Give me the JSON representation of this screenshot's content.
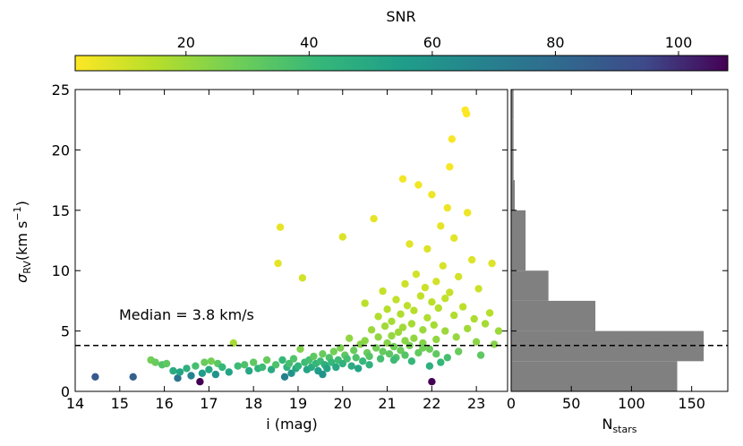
{
  "colorbar": {
    "label": "SNR",
    "min": 2,
    "max": 108,
    "ticks": [
      "20",
      "40",
      "60",
      "80",
      "100"
    ],
    "tick_values": [
      20,
      40,
      60,
      80,
      100
    ],
    "colormap": "viridis_r"
  },
  "annotation": "Median = 3.8 km/s",
  "chart_data": [
    {
      "type": "scatter",
      "xlabel": "i (mag)",
      "ylabel_main": "σ",
      "ylabel_sub": "RV",
      "ylabel_rest": "(km s",
      "ylabel_sup": "−1",
      "ylabel_close": ")",
      "xlim": [
        14,
        23.7
      ],
      "ylim": [
        0,
        25
      ],
      "xticks": [
        "14",
        "15",
        "16",
        "17",
        "18",
        "19",
        "20",
        "21",
        "22",
        "23"
      ],
      "xtick_values": [
        14,
        15,
        16,
        17,
        18,
        19,
        20,
        21,
        22,
        23
      ],
      "yticks": [
        "0",
        "5",
        "10",
        "15",
        "20",
        "25"
      ],
      "ytick_values": [
        0,
        5,
        10,
        15,
        20,
        25
      ],
      "median_line": 3.8,
      "points": [
        [
          14.45,
          1.2,
          88
        ],
        [
          15.3,
          1.2,
          85
        ],
        [
          15.7,
          2.6,
          28
        ],
        [
          15.8,
          2.4,
          30
        ],
        [
          15.95,
          2.2,
          35
        ],
        [
          16.05,
          2.3,
          32
        ],
        [
          16.2,
          1.7,
          48
        ],
        [
          16.3,
          1.1,
          75
        ],
        [
          16.35,
          1.6,
          52
        ],
        [
          16.5,
          1.9,
          45
        ],
        [
          16.6,
          1.3,
          68
        ],
        [
          16.7,
          2.1,
          38
        ],
        [
          16.8,
          0.8,
          108
        ],
        [
          16.85,
          1.5,
          55
        ],
        [
          16.9,
          2.4,
          30
        ],
        [
          17.0,
          1.8,
          50
        ],
        [
          17.05,
          2.5,
          28
        ],
        [
          17.15,
          1.4,
          60
        ],
        [
          17.2,
          2.3,
          33
        ],
        [
          17.3,
          2.0,
          42
        ],
        [
          17.45,
          1.6,
          52
        ],
        [
          17.55,
          4.0,
          18
        ],
        [
          17.65,
          2.1,
          40
        ],
        [
          17.8,
          2.2,
          36
        ],
        [
          17.9,
          1.7,
          50
        ],
        [
          18.0,
          2.4,
          32
        ],
        [
          18.1,
          1.9,
          45
        ],
        [
          18.2,
          2.0,
          40
        ],
        [
          18.3,
          2.6,
          30
        ],
        [
          18.4,
          1.8,
          48
        ],
        [
          18.5,
          2.2,
          36
        ],
        [
          18.55,
          10.6,
          7
        ],
        [
          18.6,
          13.6,
          6
        ],
        [
          18.65,
          2.6,
          42
        ],
        [
          18.7,
          1.2,
          70
        ],
        [
          18.75,
          2.0,
          45
        ],
        [
          18.8,
          2.3,
          38
        ],
        [
          18.85,
          1.5,
          60
        ],
        [
          18.9,
          2.7,
          35
        ],
        [
          18.95,
          1.9,
          50
        ],
        [
          19.0,
          2.1,
          44
        ],
        [
          19.05,
          3.5,
          25
        ],
        [
          19.1,
          9.4,
          10
        ],
        [
          19.15,
          2.4,
          40
        ],
        [
          19.2,
          1.8,
          52
        ],
        [
          19.25,
          2.6,
          38
        ],
        [
          19.3,
          2.0,
          48
        ],
        [
          19.35,
          2.9,
          32
        ],
        [
          19.4,
          2.3,
          42
        ],
        [
          19.45,
          1.7,
          55
        ],
        [
          19.5,
          2.5,
          40
        ],
        [
          19.55,
          3.1,
          30
        ],
        [
          19.6,
          2.2,
          46
        ],
        [
          19.65,
          1.9,
          52
        ],
        [
          19.7,
          2.8,
          36
        ],
        [
          19.75,
          2.4,
          42
        ],
        [
          19.8,
          3.3,
          28
        ],
        [
          19.85,
          2.0,
          50
        ],
        [
          19.9,
          2.6,
          40
        ],
        [
          19.95,
          3.6,
          26
        ],
        [
          20.0,
          2.3,
          45
        ],
        [
          20.0,
          12.8,
          8
        ],
        [
          20.05,
          3.0,
          32
        ],
        [
          20.1,
          2.7,
          38
        ],
        [
          20.15,
          4.4,
          22
        ],
        [
          20.2,
          2.1,
          48
        ],
        [
          20.25,
          3.4,
          30
        ],
        [
          20.3,
          2.8,
          36
        ],
        [
          20.35,
          1.9,
          52
        ],
        [
          20.4,
          3.9,
          24
        ],
        [
          20.45,
          2.5,
          42
        ],
        [
          20.5,
          4.2,
          23
        ],
        [
          20.5,
          7.3,
          14
        ],
        [
          20.55,
          3.2,
          30
        ],
        [
          20.6,
          2.9,
          34
        ],
        [
          20.65,
          5.1,
          20
        ],
        [
          20.7,
          14.3,
          6
        ],
        [
          20.75,
          3.6,
          28
        ],
        [
          20.8,
          4.5,
          22
        ],
        [
          20.8,
          6.2,
          16
        ],
        [
          20.85,
          2.7,
          38
        ],
        [
          20.9,
          3.3,
          31
        ],
        [
          20.9,
          8.3,
          12
        ],
        [
          20.95,
          5.4,
          19
        ],
        [
          21.0,
          4.0,
          24
        ],
        [
          21.0,
          6.8,
          15
        ],
        [
          21.05,
          3.1,
          33
        ],
        [
          21.1,
          5.8,
          18
        ],
        [
          21.1,
          4.6,
          21
        ],
        [
          21.15,
          3.7,
          28
        ],
        [
          21.2,
          7.6,
          13
        ],
        [
          21.2,
          2.8,
          36
        ],
        [
          21.25,
          4.9,
          20
        ],
        [
          21.3,
          6.4,
          16
        ],
        [
          21.3,
          3.4,
          30
        ],
        [
          21.35,
          5.3,
          19
        ],
        [
          21.4,
          8.9,
          11
        ],
        [
          21.4,
          4.2,
          23
        ],
        [
          21.45,
          7.1,
          14
        ],
        [
          21.5,
          3.8,
          27
        ],
        [
          21.5,
          12.2,
          7
        ],
        [
          21.55,
          5.6,
          18
        ],
        [
          21.6,
          6.7,
          15
        ],
        [
          21.6,
          4.4,
          22
        ],
        [
          21.65,
          9.7,
          10
        ],
        [
          21.7,
          3.2,
          31
        ],
        [
          21.7,
          17.1,
          4
        ],
        [
          21.75,
          7.9,
          13
        ],
        [
          21.8,
          5.1,
          20
        ],
        [
          21.8,
          4.0,
          24
        ],
        [
          21.85,
          8.6,
          11
        ],
        [
          21.9,
          6.1,
          16
        ],
        [
          21.9,
          11.8,
          8
        ],
        [
          21.95,
          3.5,
          29
        ],
        [
          22.0,
          7.4,
          14
        ],
        [
          22.0,
          16.3,
          5
        ],
        [
          22.0,
          0.8,
          108
        ],
        [
          22.05,
          5.5,
          18
        ],
        [
          22.1,
          9.1,
          10
        ],
        [
          22.1,
          4.3,
          22
        ],
        [
          22.15,
          6.9,
          15
        ],
        [
          22.2,
          13.7,
          6
        ],
        [
          22.2,
          2.4,
          42
        ],
        [
          22.25,
          10.4,
          9
        ],
        [
          22.3,
          7.7,
          13
        ],
        [
          22.3,
          5.0,
          20
        ],
        [
          22.35,
          15.2,
          5
        ],
        [
          22.4,
          8.2,
          12
        ],
        [
          22.4,
          18.6,
          3
        ],
        [
          22.45,
          20.9,
          3
        ],
        [
          22.5,
          6.3,
          16
        ],
        [
          22.5,
          12.7,
          7
        ],
        [
          22.55,
          4.5,
          21
        ],
        [
          22.6,
          9.5,
          10
        ],
        [
          22.6,
          3.3,
          30
        ],
        [
          22.7,
          7.0,
          14
        ],
        [
          22.75,
          23.3,
          2
        ],
        [
          22.8,
          14.8,
          5
        ],
        [
          22.8,
          5.2,
          19
        ],
        [
          22.9,
          10.9,
          8
        ],
        [
          22.95,
          6.0,
          17
        ],
        [
          23.0,
          4.1,
          23
        ],
        [
          23.05,
          8.5,
          11
        ],
        [
          23.1,
          3.0,
          32
        ],
        [
          23.2,
          5.6,
          18
        ],
        [
          23.3,
          6.5,
          15
        ],
        [
          23.35,
          10.6,
          8
        ],
        [
          23.4,
          3.9,
          24
        ],
        [
          23.5,
          5.0,
          20
        ],
        [
          21.35,
          17.6,
          4
        ],
        [
          22.78,
          23.0,
          2
        ],
        [
          21.55,
          2.5,
          42
        ],
        [
          22.35,
          2.8,
          38
        ],
        [
          21.95,
          2.1,
          46
        ],
        [
          19.55,
          1.4,
          60
        ],
        [
          20.6,
          2.2,
          45
        ],
        [
          21.15,
          2.6,
          40
        ],
        [
          21.4,
          3.0,
          34
        ],
        [
          21.8,
          3.6,
          28
        ],
        [
          22.1,
          3.1,
          32
        ]
      ]
    },
    {
      "type": "bar",
      "orientation": "horizontal",
      "xlabel_main": "N",
      "xlabel_sub": "stars",
      "xlim": [
        0,
        180
      ],
      "xticks": [
        "0",
        "50",
        "100",
        "150"
      ],
      "xtick_values": [
        0,
        50,
        100,
        150
      ],
      "bin_edges": [
        0,
        2.5,
        5,
        7.5,
        10,
        12.5,
        15,
        17.5,
        20,
        22.5,
        25
      ],
      "counts": [
        138,
        160,
        70,
        31,
        12,
        12,
        3,
        2,
        2,
        2
      ],
      "median_line": 3.8
    }
  ]
}
